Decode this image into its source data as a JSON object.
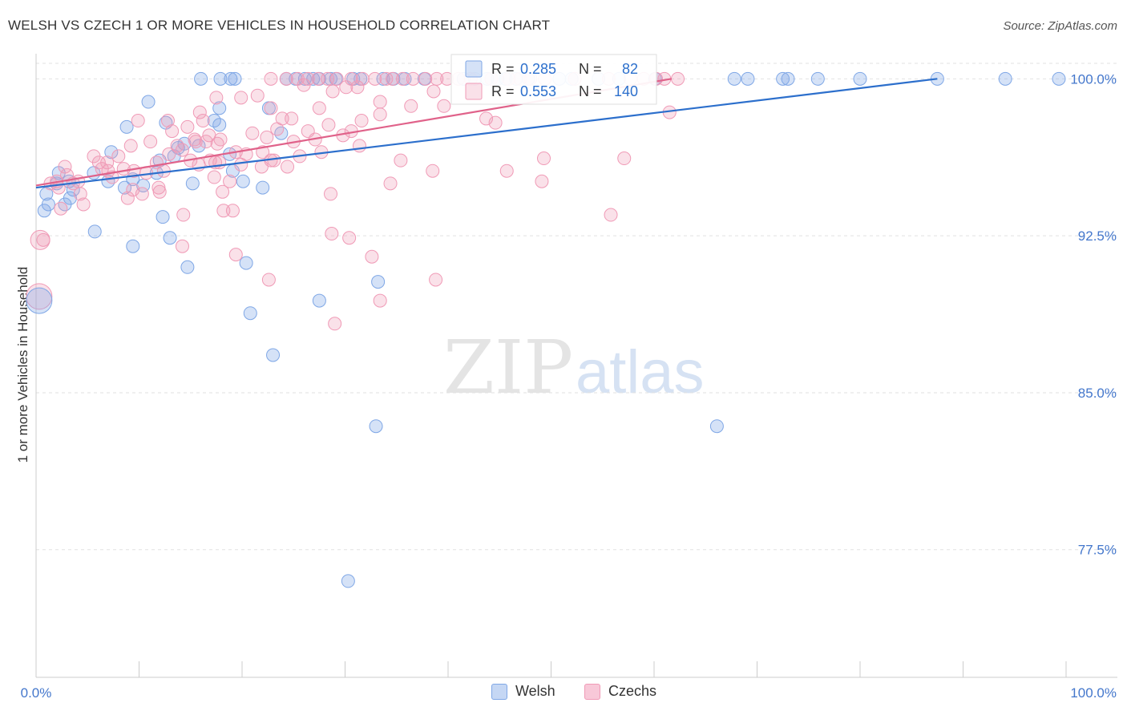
{
  "title": "WELSH VS CZECH 1 OR MORE VEHICLES IN HOUSEHOLD CORRELATION CHART",
  "source": "Source: ZipAtlas.com",
  "watermark": {
    "zip": "ZIP",
    "atlas": "atlas"
  },
  "legend_stats": [
    {
      "r_label": "R =",
      "r_value": "0.285",
      "n_label": "N =",
      "n_value": "82"
    },
    {
      "r_label": "R =",
      "r_value": "0.553",
      "n_label": "N =",
      "n_value": "140"
    }
  ],
  "chart_data": {
    "type": "scatter",
    "title": "WELSH VS CZECH 1 OR MORE VEHICLES IN HOUSEHOLD CORRELATION CHART",
    "xlabel": "",
    "ylabel": "1 or more Vehicles in Household",
    "xlim": [
      0,
      100
    ],
    "ylim": [
      71.4,
      101.2
    ],
    "x_tick_labels": [
      "0.0%",
      "100.0%"
    ],
    "y_ticks": [
      77.5,
      85.0,
      92.5,
      100.0
    ],
    "y_tick_labels": [
      "77.5%",
      "85.0%",
      "92.5%",
      "100.0%"
    ],
    "grid": true,
    "legend_position": "bottom",
    "series": [
      {
        "name": "Welsh",
        "color": "#7fa7e6",
        "line_color": "#2c6fcc",
        "trend": {
          "x": [
            0,
            87.5
          ],
          "y": [
            94.8,
            100.0
          ]
        },
        "points": [
          [
            0.8,
            93.7
          ],
          [
            1.0,
            94.5
          ],
          [
            1.2,
            94.0
          ],
          [
            2.0,
            95.0
          ],
          [
            2.2,
            95.5
          ],
          [
            2.8,
            94.0
          ],
          [
            3.3,
            94.3
          ],
          [
            3.6,
            94.7
          ],
          [
            3.2,
            95.1
          ],
          [
            5.6,
            95.5
          ],
          [
            7.0,
            95.1
          ],
          [
            7.3,
            96.5
          ],
          [
            8.6,
            94.8
          ],
          [
            8.8,
            97.7
          ],
          [
            9.4,
            95.2
          ],
          [
            10.4,
            94.9
          ],
          [
            11.7,
            95.5
          ],
          [
            10.9,
            98.9
          ],
          [
            12.0,
            96.1
          ],
          [
            13.4,
            96.3
          ],
          [
            12.6,
            97.9
          ],
          [
            14.4,
            96.9
          ],
          [
            13.8,
            96.7
          ],
          [
            15.2,
            95.0
          ],
          [
            15.8,
            96.8
          ],
          [
            17.3,
            98.0
          ],
          [
            17.8,
            98.6
          ],
          [
            17.8,
            97.8
          ],
          [
            18.8,
            96.4
          ],
          [
            19.1,
            95.6
          ],
          [
            20.1,
            95.1
          ],
          [
            22.0,
            94.8
          ],
          [
            22.6,
            98.6
          ],
          [
            23.8,
            97.4
          ],
          [
            16.0,
            100.0
          ],
          [
            17.9,
            100.0
          ],
          [
            18.9,
            100.0
          ],
          [
            19.3,
            100.0
          ],
          [
            24.3,
            100.0
          ],
          [
            25.2,
            100.0
          ],
          [
            26.1,
            100.0
          ],
          [
            26.9,
            100.0
          ],
          [
            27.5,
            100.0
          ],
          [
            28.6,
            100.0
          ],
          [
            29.1,
            100.0
          ],
          [
            30.8,
            100.0
          ],
          [
            31.5,
            100.0
          ],
          [
            33.7,
            100.0
          ],
          [
            34.7,
            100.0
          ],
          [
            35.8,
            100.0
          ],
          [
            37.7,
            100.0
          ],
          [
            41.5,
            100.0
          ],
          [
            42.6,
            100.0
          ],
          [
            43.8,
            100.0
          ],
          [
            44.8,
            100.0
          ],
          [
            45.6,
            100.0
          ],
          [
            46.6,
            100.0
          ],
          [
            47.8,
            100.0
          ],
          [
            50.8,
            100.0
          ],
          [
            52.0,
            100.0
          ],
          [
            54.6,
            100.0
          ],
          [
            56.6,
            100.0
          ],
          [
            60.1,
            100.0
          ],
          [
            67.8,
            100.0
          ],
          [
            69.1,
            100.0
          ],
          [
            72.5,
            100.0
          ],
          [
            73.0,
            100.0
          ],
          [
            75.9,
            100.0
          ],
          [
            80.0,
            100.0
          ],
          [
            87.5,
            100.0
          ],
          [
            94.1,
            100.0
          ],
          [
            99.3,
            100.0
          ],
          [
            5.7,
            92.7
          ],
          [
            9.4,
            92.0
          ],
          [
            13.0,
            92.4
          ],
          [
            14.7,
            91.0
          ],
          [
            12.3,
            93.4
          ],
          [
            20.4,
            91.2
          ],
          [
            33.2,
            90.3
          ],
          [
            20.8,
            88.8
          ],
          [
            27.5,
            89.4
          ],
          [
            23.0,
            86.8
          ],
          [
            33.0,
            83.4
          ],
          [
            66.1,
            83.4
          ],
          [
            30.3,
            76.0
          ]
        ]
      },
      {
        "name": "Czechs",
        "color": "#f09ab6",
        "line_color": "#e0628a",
        "trend": {
          "x": [
            0,
            61.7
          ],
          "y": [
            94.9,
            100.0
          ]
        },
        "points": [
          [
            0.7,
            92.3
          ],
          [
            1.4,
            95.0
          ],
          [
            2.0,
            95.1
          ],
          [
            2.8,
            95.8
          ],
          [
            3.0,
            95.4
          ],
          [
            3.6,
            95.0
          ],
          [
            4.6,
            94.0
          ],
          [
            5.6,
            96.3
          ],
          [
            6.1,
            96.0
          ],
          [
            6.4,
            95.7
          ],
          [
            6.9,
            96.0
          ],
          [
            7.4,
            95.3
          ],
          [
            8.0,
            96.3
          ],
          [
            8.5,
            95.7
          ],
          [
            8.9,
            94.3
          ],
          [
            9.2,
            96.8
          ],
          [
            9.5,
            95.6
          ],
          [
            9.9,
            98.0
          ],
          [
            10.7,
            95.5
          ],
          [
            11.1,
            97.0
          ],
          [
            11.7,
            96.0
          ],
          [
            12.0,
            94.6
          ],
          [
            12.4,
            95.6
          ],
          [
            12.9,
            96.4
          ],
          [
            13.2,
            97.5
          ],
          [
            13.7,
            96.8
          ],
          [
            14.2,
            96.6
          ],
          [
            14.7,
            97.7
          ],
          [
            15.0,
            96.1
          ],
          [
            15.4,
            97.1
          ],
          [
            15.8,
            95.9
          ],
          [
            16.5,
            97.0
          ],
          [
            16.9,
            96.1
          ],
          [
            17.3,
            95.3
          ],
          [
            17.6,
            96.9
          ],
          [
            18.1,
            94.6
          ],
          [
            18.8,
            95.1
          ],
          [
            19.4,
            96.5
          ],
          [
            19.9,
            95.9
          ],
          [
            20.4,
            96.4
          ],
          [
            21.0,
            97.4
          ],
          [
            21.5,
            99.2
          ],
          [
            21.9,
            95.8
          ],
          [
            22.4,
            97.2
          ],
          [
            22.8,
            96.1
          ],
          [
            23.4,
            97.6
          ],
          [
            23.9,
            98.1
          ],
          [
            24.4,
            95.8
          ],
          [
            25.0,
            97.0
          ],
          [
            25.6,
            96.3
          ],
          [
            26.0,
            99.7
          ],
          [
            26.4,
            97.5
          ],
          [
            27.1,
            97.1
          ],
          [
            27.7,
            96.5
          ],
          [
            28.4,
            97.8
          ],
          [
            28.8,
            99.4
          ],
          [
            29.8,
            97.3
          ],
          [
            30.6,
            97.5
          ],
          [
            31.2,
            99.6
          ],
          [
            31.4,
            96.8
          ],
          [
            33.4,
            98.3
          ],
          [
            34.4,
            95.0
          ],
          [
            35.4,
            96.1
          ],
          [
            38.6,
            99.4
          ],
          [
            39.6,
            98.7
          ],
          [
            44.6,
            97.9
          ],
          [
            45.7,
            95.6
          ],
          [
            49.3,
            96.2
          ],
          [
            61.5,
            98.4
          ],
          [
            2.2,
            94.8
          ],
          [
            4.1,
            95.1
          ],
          [
            7.0,
            95.6
          ],
          [
            9.4,
            94.7
          ],
          [
            11.9,
            94.8
          ],
          [
            15.5,
            97.0
          ],
          [
            16.8,
            97.3
          ],
          [
            17.8,
            96.0
          ],
          [
            22.0,
            96.5
          ],
          [
            23.1,
            96.1
          ],
          [
            2.4,
            93.8
          ],
          [
            4.3,
            94.5
          ],
          [
            10.3,
            94.5
          ],
          [
            14.3,
            93.5
          ],
          [
            17.4,
            96.0
          ],
          [
            17.9,
            97.1
          ],
          [
            18.2,
            93.7
          ],
          [
            19.1,
            93.7
          ],
          [
            28.6,
            94.5
          ],
          [
            22.6,
            90.4
          ],
          [
            28.7,
            92.6
          ],
          [
            30.4,
            92.4
          ],
          [
            19.4,
            91.6
          ],
          [
            32.6,
            91.5
          ],
          [
            33.4,
            89.4
          ],
          [
            29.0,
            88.3
          ],
          [
            38.8,
            90.4
          ],
          [
            14.2,
            92.0
          ],
          [
            38.5,
            95.6
          ],
          [
            49.1,
            95.1
          ],
          [
            55.8,
            93.5
          ],
          [
            57.1,
            96.2
          ],
          [
            12.8,
            98.0
          ],
          [
            15.9,
            98.4
          ],
          [
            16.2,
            98.0
          ],
          [
            17.5,
            99.1
          ],
          [
            19.9,
            99.1
          ],
          [
            22.8,
            98.6
          ],
          [
            24.8,
            98.1
          ],
          [
            27.5,
            98.6
          ],
          [
            30.1,
            99.6
          ],
          [
            31.6,
            98.0
          ],
          [
            33.4,
            98.9
          ],
          [
            36.4,
            98.7
          ],
          [
            43.7,
            98.1
          ],
          [
            22.8,
            100.0
          ],
          [
            24.3,
            100.0
          ],
          [
            25.4,
            100.0
          ],
          [
            26.4,
            100.0
          ],
          [
            27.4,
            100.0
          ],
          [
            28.3,
            100.0
          ],
          [
            29.2,
            100.0
          ],
          [
            30.6,
            100.0
          ],
          [
            31.7,
            100.0
          ],
          [
            32.9,
            100.0
          ],
          [
            34.6,
            100.0
          ],
          [
            35.6,
            100.0
          ],
          [
            36.6,
            100.0
          ],
          [
            37.8,
            100.0
          ],
          [
            38.9,
            100.0
          ],
          [
            39.9,
            100.0
          ],
          [
            41.0,
            100.0
          ],
          [
            42.2,
            100.0
          ],
          [
            45.9,
            100.0
          ],
          [
            48.0,
            100.0
          ],
          [
            49.4,
            100.0
          ],
          [
            52.3,
            100.0
          ],
          [
            55.6,
            100.0
          ],
          [
            57.7,
            100.0
          ],
          [
            59.0,
            100.0
          ],
          [
            60.2,
            100.0
          ],
          [
            61.0,
            100.0
          ],
          [
            62.3,
            100.0
          ],
          [
            34.0,
            100.0
          ],
          [
            44.2,
            100.0
          ],
          [
            47.0,
            100.0
          ]
        ]
      }
    ],
    "big_points": [
      {
        "series": "Czechs",
        "x": 0.3,
        "y": 89.6
      },
      {
        "series": "Welsh",
        "x": 0.3,
        "y": 89.4
      },
      {
        "series": "Czechs",
        "x": 0.4,
        "y": 92.3
      }
    ]
  },
  "bottom_legend": [
    {
      "label": "Welsh",
      "fill": "#c5d7f4",
      "stroke": "#7fa7e6"
    },
    {
      "label": "Czechs",
      "fill": "#f8c8d8",
      "stroke": "#f09ab6"
    }
  ]
}
